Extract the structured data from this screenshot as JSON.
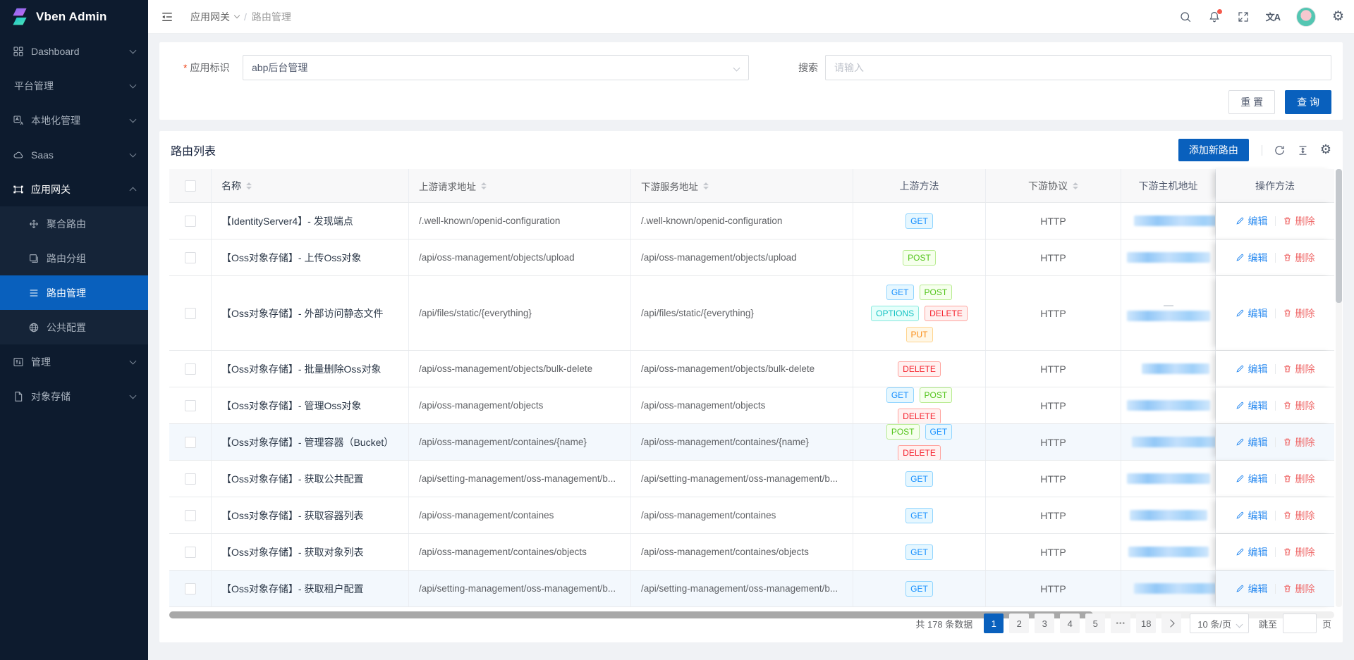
{
  "app": {
    "title": "Vben Admin"
  },
  "colors": {
    "primary": "#0960bd",
    "sidebar_bg": "#0d1b2e",
    "danger": "#ef6a6a",
    "method_colors": {
      "GET": "#1890ff",
      "POST": "#52c41a",
      "OPTIONS": "#13c2c2",
      "DELETE": "#f5222d",
      "PUT": "#fa8c16"
    }
  },
  "sidebar": {
    "dashboard": "Dashboard",
    "platform": "平台管理",
    "localization": "本地化管理",
    "saas": "Saas",
    "gateway": "应用网关",
    "aggregate_route": "聚合路由",
    "route_group": "路由分组",
    "route_manage": "路由管理",
    "public_config": "公共配置",
    "manage": "管理",
    "object_storage": "对象存储"
  },
  "header": {
    "breadcrumb_parent": "应用网关",
    "breadcrumb_separator": "/",
    "breadcrumb_current": "路由管理"
  },
  "filter": {
    "app_label": "应用标识",
    "app_value": "abp后台管理",
    "search_label": "搜索",
    "search_placeholder": "请输入",
    "reset_label": "重 置",
    "query_label": "查 询"
  },
  "list": {
    "title": "路由列表",
    "add_label": "添加新路由",
    "edit_label": "编辑",
    "delete_label": "删除",
    "columns": {
      "name": "名称",
      "upstream": "上游请求地址",
      "downstream": "下游服务地址",
      "methods": "上游方法",
      "protocol": "下游协议",
      "host": "下游主机地址",
      "actions": "操作方法"
    },
    "rows": [
      {
        "name": "【IdentityServer4】- 发现端点",
        "upstream": "/.well-known/openid-configuration",
        "downstream": "/.well-known/openid-configuration",
        "methods": [
          "GET"
        ],
        "protocol": "HTTP"
      },
      {
        "name": "【Oss对象存储】- 上传Oss对象",
        "upstream": "/api/oss-management/objects/upload",
        "downstream": "/api/oss-management/objects/upload",
        "methods": [
          "POST"
        ],
        "protocol": "HTTP"
      },
      {
        "name": "【Oss对象存储】- 外部访问静态文件",
        "upstream": "/api/files/static/{everything}",
        "downstream": "/api/files/static/{everything}",
        "methods": [
          "GET",
          "POST",
          "OPTIONS",
          "DELETE",
          "PUT"
        ],
        "protocol": "HTTP"
      },
      {
        "name": "【Oss对象存储】- 批量删除Oss对象",
        "upstream": "/api/oss-management/objects/bulk-delete",
        "downstream": "/api/oss-management/objects/bulk-delete",
        "methods": [
          "DELETE"
        ],
        "protocol": "HTTP"
      },
      {
        "name": "【Oss对象存储】- 管理Oss对象",
        "upstream": "/api/oss-management/objects",
        "downstream": "/api/oss-management/objects",
        "methods": [
          "GET",
          "POST",
          "DELETE"
        ],
        "protocol": "HTTP"
      },
      {
        "name": "【Oss对象存储】- 管理容器（Bucket）",
        "upstream": "/api/oss-management/containes/{name}",
        "downstream": "/api/oss-management/containes/{name}",
        "methods": [
          "POST",
          "GET",
          "DELETE"
        ],
        "protocol": "HTTP"
      },
      {
        "name": "【Oss对象存储】- 获取公共配置",
        "upstream": "/api/setting-management/oss-management/b...",
        "downstream": "/api/setting-management/oss-management/b...",
        "methods": [
          "GET"
        ],
        "protocol": "HTTP"
      },
      {
        "name": "【Oss对象存储】- 获取容器列表",
        "upstream": "/api/oss-management/containes",
        "downstream": "/api/oss-management/containes",
        "methods": [
          "GET"
        ],
        "protocol": "HTTP"
      },
      {
        "name": "【Oss对象存储】- 获取对象列表",
        "upstream": "/api/oss-management/containes/objects",
        "downstream": "/api/oss-management/containes/objects",
        "methods": [
          "GET"
        ],
        "protocol": "HTTP"
      },
      {
        "name": "【Oss对象存储】- 获取租户配置",
        "upstream": "/api/setting-management/oss-management/b...",
        "downstream": "/api/setting-management/oss-management/b...",
        "methods": [
          "GET"
        ],
        "protocol": "HTTP"
      }
    ]
  },
  "pagination": {
    "total": "共 178 条数据",
    "pages": [
      "1",
      "2",
      "3",
      "4",
      "5",
      "•••",
      "18"
    ],
    "size": "10 条/页",
    "jump_prefix": "跳至",
    "jump_suffix": "页"
  }
}
